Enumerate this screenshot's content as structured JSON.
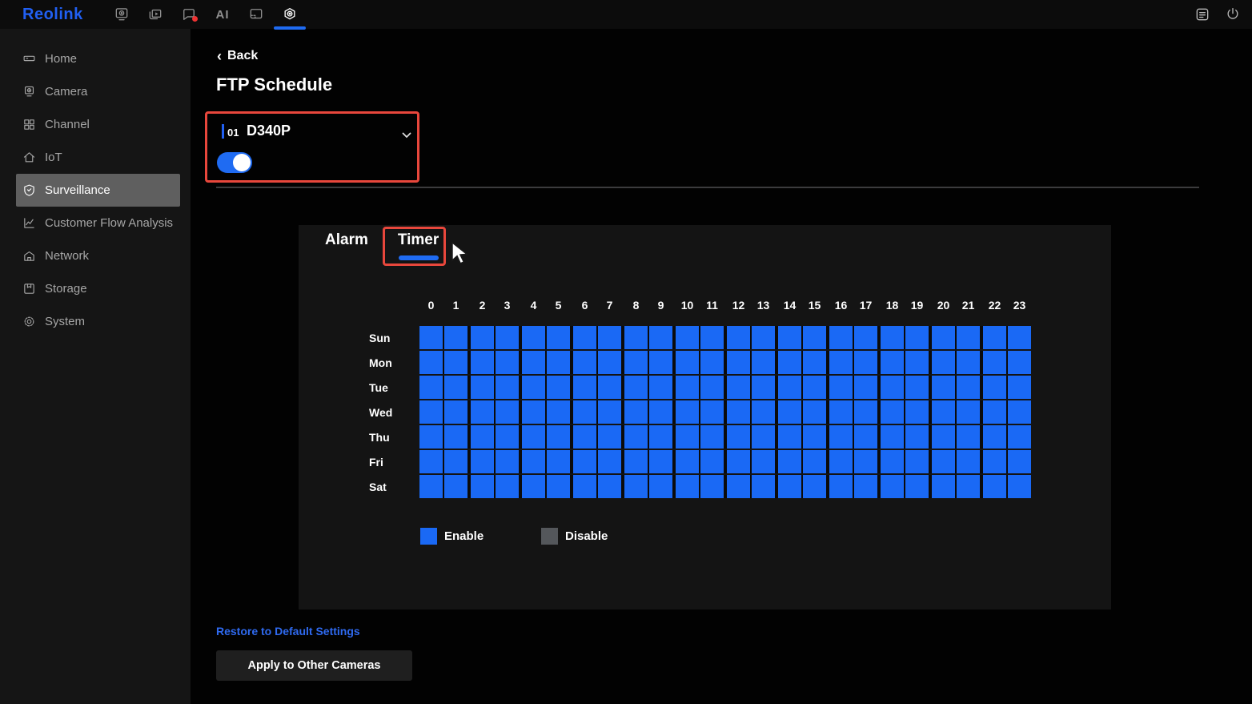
{
  "theme": {
    "accent_blue": "#1f6bf2",
    "logo_blue": "#2160f3",
    "annotation_red": "#e8473c",
    "enable_blue": "#1a69f5",
    "disable_gray": "#54575b"
  },
  "topbar": {
    "logo": "Reolink",
    "nav_icons": [
      {
        "icon": "camera-view-icon",
        "active": false,
        "badge": false
      },
      {
        "icon": "playback-icon",
        "active": false,
        "badge": false
      },
      {
        "icon": "messages-icon",
        "active": false,
        "badge": true
      },
      {
        "icon": "ai-icon",
        "active": false,
        "badge": false,
        "text": "AI"
      },
      {
        "icon": "floating-window-icon",
        "active": false,
        "badge": false
      },
      {
        "icon": "settings-icon",
        "active": true,
        "badge": false
      }
    ],
    "right_icons": [
      {
        "icon": "log-icon"
      },
      {
        "icon": "power-icon"
      }
    ]
  },
  "sidebar": {
    "items": [
      {
        "icon": "home-icon",
        "label": "Home",
        "active": false
      },
      {
        "icon": "camera-icon",
        "label": "Camera",
        "active": false
      },
      {
        "icon": "channel-icon",
        "label": "Channel",
        "active": false
      },
      {
        "icon": "iot-icon",
        "label": "IoT",
        "active": false
      },
      {
        "icon": "surveillance-icon",
        "label": "Surveillance",
        "active": true
      },
      {
        "icon": "cfa-icon",
        "label": "Customer Flow Analysis",
        "active": false
      },
      {
        "icon": "network-icon",
        "label": "Network",
        "active": false
      },
      {
        "icon": "storage-icon",
        "label": "Storage",
        "active": false
      },
      {
        "icon": "system-icon",
        "label": "System",
        "active": false
      }
    ]
  },
  "page": {
    "back_label": "Back",
    "title": "FTP Schedule"
  },
  "device": {
    "channel_no": "01",
    "name": "D340P",
    "ftp_enabled": true
  },
  "tabs": [
    {
      "label": "Alarm",
      "active": false
    },
    {
      "label": "Timer",
      "active": true
    }
  ],
  "schedule": {
    "hours": [
      "0",
      "1",
      "2",
      "3",
      "4",
      "5",
      "6",
      "7",
      "8",
      "9",
      "10",
      "11",
      "12",
      "13",
      "14",
      "15",
      "16",
      "17",
      "18",
      "19",
      "20",
      "21",
      "22",
      "23"
    ],
    "enable_color": "#1a69f5",
    "disable_color": "#54575b",
    "rows": [
      {
        "day": "Sun",
        "cells": [
          1,
          1,
          1,
          1,
          1,
          1,
          1,
          1,
          1,
          1,
          1,
          1,
          1,
          1,
          1,
          1,
          1,
          1,
          1,
          1,
          1,
          1,
          1,
          1
        ]
      },
      {
        "day": "Mon",
        "cells": [
          1,
          1,
          1,
          1,
          1,
          1,
          1,
          1,
          1,
          1,
          1,
          1,
          1,
          1,
          1,
          1,
          1,
          1,
          1,
          1,
          1,
          1,
          1,
          1
        ]
      },
      {
        "day": "Tue",
        "cells": [
          1,
          1,
          1,
          1,
          1,
          1,
          1,
          1,
          1,
          1,
          1,
          1,
          1,
          1,
          1,
          1,
          1,
          1,
          1,
          1,
          1,
          1,
          1,
          1
        ]
      },
      {
        "day": "Wed",
        "cells": [
          1,
          1,
          1,
          1,
          1,
          1,
          1,
          1,
          1,
          1,
          1,
          1,
          1,
          1,
          1,
          1,
          1,
          1,
          1,
          1,
          1,
          1,
          1,
          1
        ]
      },
      {
        "day": "Thu",
        "cells": [
          1,
          1,
          1,
          1,
          1,
          1,
          1,
          1,
          1,
          1,
          1,
          1,
          1,
          1,
          1,
          1,
          1,
          1,
          1,
          1,
          1,
          1,
          1,
          1
        ]
      },
      {
        "day": "Fri",
        "cells": [
          1,
          1,
          1,
          1,
          1,
          1,
          1,
          1,
          1,
          1,
          1,
          1,
          1,
          1,
          1,
          1,
          1,
          1,
          1,
          1,
          1,
          1,
          1,
          1
        ]
      },
      {
        "day": "Sat",
        "cells": [
          1,
          1,
          1,
          1,
          1,
          1,
          1,
          1,
          1,
          1,
          1,
          1,
          1,
          1,
          1,
          1,
          1,
          1,
          1,
          1,
          1,
          1,
          1,
          1
        ]
      }
    ]
  },
  "legend": [
    {
      "label": "Enable",
      "color": "#1a69f5"
    },
    {
      "label": "Disable",
      "color": "#54575b"
    }
  ],
  "footer": {
    "restore_label": "Restore to Default Settings",
    "apply_label": "Apply to Other Cameras"
  }
}
